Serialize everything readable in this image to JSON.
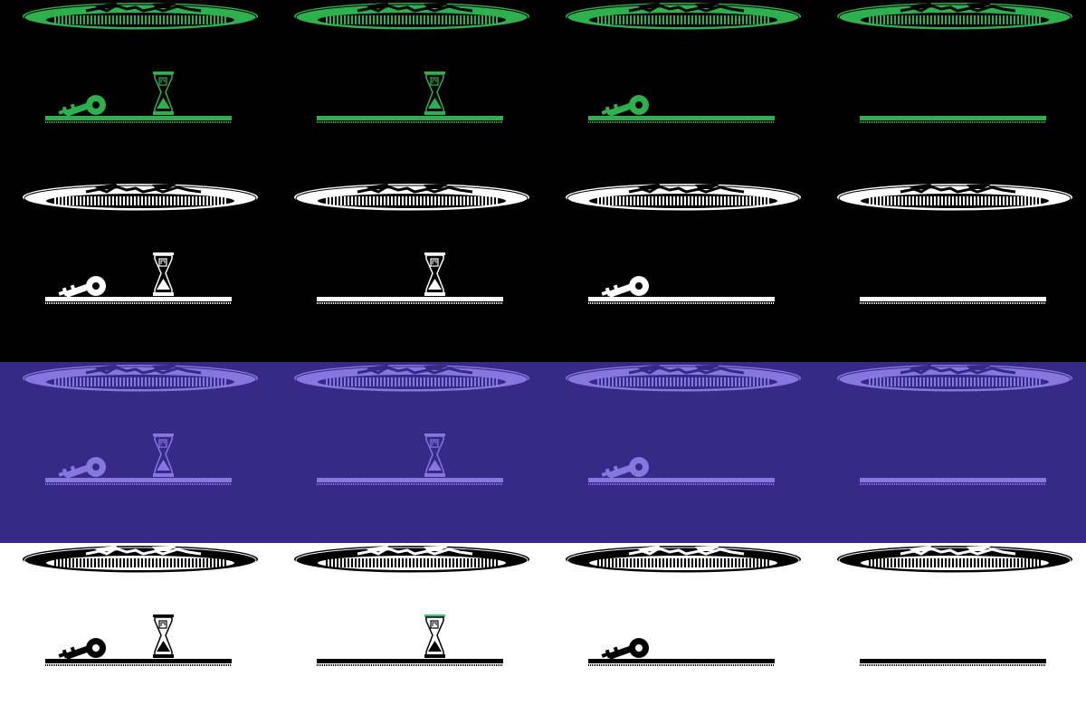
{
  "palettes": [
    {
      "name": "green-on-black",
      "background": "#000000",
      "foreground": "#2fb04e",
      "accent": "#2fb04e"
    },
    {
      "name": "white-on-black",
      "background": "#000000",
      "foreground": "#ffffff",
      "accent": "#ffffff"
    },
    {
      "name": "lavender-on-indigo",
      "background": "#372a86",
      "foreground": "#8776e0",
      "accent": "#8776e0"
    },
    {
      "name": "black-on-white",
      "background": "#ffffff",
      "foreground": "#000000",
      "accent": "#3fbf7f"
    }
  ],
  "frames": [
    {
      "frame": 1,
      "items": [
        "key-icon",
        "hourglass-icon"
      ],
      "hourglass_sand": "bottom"
    },
    {
      "frame": 2,
      "items": [
        "hourglass-icon"
      ],
      "hourglass_sand": "bottom"
    },
    {
      "frame": 3,
      "items": [
        "key-icon"
      ]
    },
    {
      "frame": 4,
      "items": []
    }
  ],
  "icons": {
    "portal": "portal-ellipse-icon",
    "key": "key-icon",
    "hourglass": "hourglass-icon",
    "floor": "floor-ledge"
  }
}
